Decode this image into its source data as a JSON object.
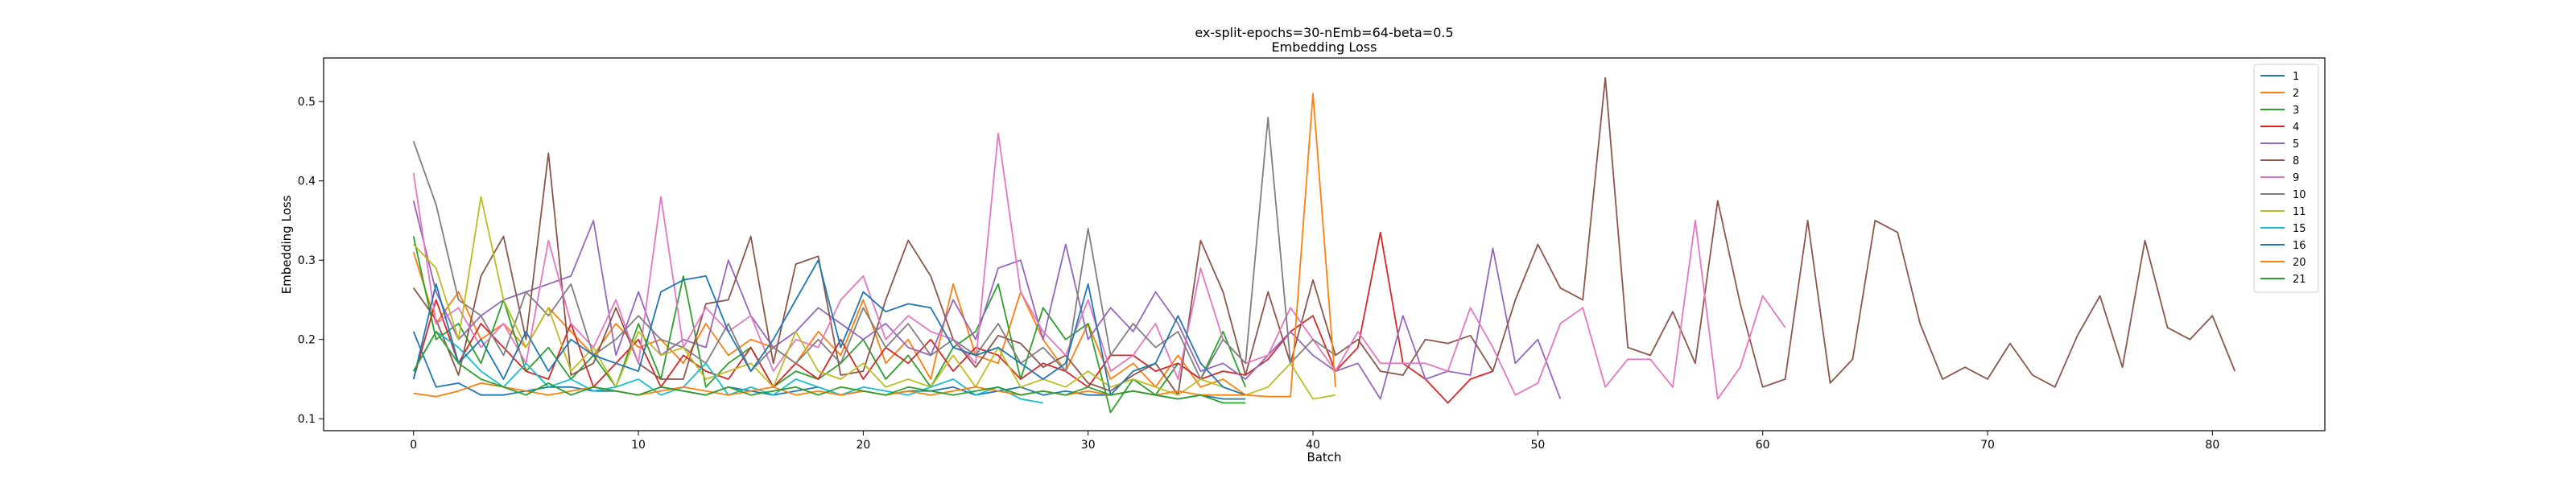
{
  "chart_data": {
    "type": "line",
    "title": "ex-split-epochs=30-nEmb=64-beta=0.5",
    "subtitle": "Embedding Loss",
    "xlabel": "Batch",
    "ylabel": "Embedding Loss",
    "xlim": [
      -4,
      85
    ],
    "ylim": [
      0.085,
      0.555
    ],
    "xticks": [
      0,
      10,
      20,
      30,
      40,
      50,
      60,
      70,
      80
    ],
    "yticks": [
      0.1,
      0.2,
      0.3,
      0.4,
      0.5
    ],
    "grid": false,
    "legend_position": "top-right",
    "series": [
      {
        "name": "1",
        "color": "#1f77b4",
        "values": [
          0.21,
          0.14,
          0.145,
          0.13,
          0.13,
          0.135,
          0.14,
          0.14,
          0.135,
          0.135,
          0.13,
          0.14,
          0.135,
          0.13,
          0.14,
          0.135,
          0.13,
          0.135,
          0.14,
          0.13,
          0.135,
          0.13,
          0.135,
          0.135,
          0.14,
          0.13,
          0.135,
          0.14,
          0.13,
          0.135,
          0.13,
          0.13,
          0.135,
          0.13,
          0.125,
          0.13,
          0.125,
          0.125
        ]
      },
      {
        "name": "2",
        "color": "#ff7f0e",
        "values": [
          0.31,
          0.22,
          0.26,
          0.2,
          0.22,
          0.19,
          0.24,
          0.21,
          0.18,
          0.22,
          0.19,
          0.2,
          0.17,
          0.22,
          0.18,
          0.2,
          0.19,
          0.17,
          0.21,
          0.18,
          0.25,
          0.17,
          0.2,
          0.15,
          0.27,
          0.18,
          0.17,
          0.26,
          0.2,
          0.16,
          0.22,
          0.15,
          0.17,
          0.14,
          0.18,
          0.14,
          0.15,
          0.13
        ]
      },
      {
        "name": "3",
        "color": "#2ca02c",
        "values": [
          0.33,
          0.2,
          0.22,
          0.17,
          0.25,
          0.16,
          0.19,
          0.15,
          0.18,
          0.14,
          0.22,
          0.15,
          0.28,
          0.14,
          0.17,
          0.19,
          0.14,
          0.16,
          0.15,
          0.17,
          0.2,
          0.15,
          0.18,
          0.14,
          0.19,
          0.21,
          0.27,
          0.15,
          0.24,
          0.2,
          0.22,
          0.108,
          0.15,
          0.13,
          0.17,
          0.15,
          0.21,
          0.14
        ]
      },
      {
        "name": "4",
        "color": "#d62728",
        "values": [
          0.15,
          0.25,
          0.17,
          0.22,
          0.19,
          0.16,
          0.15,
          0.22,
          0.14,
          0.17,
          0.2,
          0.14,
          0.18,
          0.16,
          0.15,
          0.19,
          0.14,
          0.17,
          0.15,
          0.2,
          0.15,
          0.19,
          0.17,
          0.2,
          0.16,
          0.19,
          0.18,
          0.15,
          0.17,
          0.16,
          0.14,
          0.18,
          0.18,
          0.16,
          0.17,
          0.15,
          0.16,
          0.155,
          0.175,
          0.21,
          0.23,
          0.16,
          0.19,
          0.335,
          0.17,
          0.15,
          0.12,
          0.15,
          0.16
        ]
      },
      {
        "name": "5",
        "color": "#9467bd",
        "values": [
          0.375,
          0.26,
          0.2,
          0.23,
          0.25,
          0.26,
          0.27,
          0.28,
          0.35,
          0.18,
          0.26,
          0.18,
          0.2,
          0.19,
          0.3,
          0.23,
          0.19,
          0.21,
          0.24,
          0.22,
          0.2,
          0.22,
          0.19,
          0.18,
          0.25,
          0.2,
          0.29,
          0.3,
          0.2,
          0.32,
          0.2,
          0.24,
          0.21,
          0.26,
          0.22,
          0.16,
          0.17,
          0.15,
          0.18,
          0.21,
          0.18,
          0.16,
          0.17,
          0.125,
          0.23,
          0.15,
          0.16,
          0.155,
          0.315,
          0.17,
          0.2,
          0.125
        ]
      },
      {
        "name": "8",
        "color": "#8c564b",
        "values": [
          0.265,
          0.225,
          0.155,
          0.28,
          0.33,
          0.2,
          0.435,
          0.155,
          0.17,
          0.24,
          0.17,
          0.15,
          0.15,
          0.245,
          0.25,
          0.33,
          0.17,
          0.295,
          0.305,
          0.155,
          0.16,
          0.25,
          0.325,
          0.28,
          0.2,
          0.165,
          0.205,
          0.195,
          0.165,
          0.18,
          0.145,
          0.135,
          0.155,
          0.17,
          0.13,
          0.325,
          0.26,
          0.155,
          0.26,
          0.17,
          0.275,
          0.18,
          0.2,
          0.16,
          0.155,
          0.2,
          0.195,
          0.205,
          0.16,
          0.25,
          0.32,
          0.265,
          0.25,
          0.53,
          0.19,
          0.18,
          0.235,
          0.17,
          0.375,
          0.245,
          0.14,
          0.15,
          0.35,
          0.145,
          0.175,
          0.35,
          0.335,
          0.22,
          0.15,
          0.165,
          0.15,
          0.195,
          0.155,
          0.14,
          0.205,
          0.255,
          0.165,
          0.325,
          0.215,
          0.2,
          0.23,
          0.16
        ]
      },
      {
        "name": "9",
        "color": "#e377c2",
        "values": [
          0.41,
          0.22,
          0.24,
          0.19,
          0.22,
          0.17,
          0.325,
          0.22,
          0.19,
          0.25,
          0.17,
          0.38,
          0.19,
          0.24,
          0.21,
          0.23,
          0.16,
          0.2,
          0.19,
          0.25,
          0.28,
          0.2,
          0.23,
          0.21,
          0.2,
          0.17,
          0.46,
          0.26,
          0.21,
          0.18,
          0.25,
          0.16,
          0.18,
          0.22,
          0.15,
          0.29,
          0.2,
          0.17,
          0.18,
          0.24,
          0.2,
          0.16,
          0.21,
          0.17,
          0.17,
          0.17,
          0.16,
          0.24,
          0.19,
          0.13,
          0.145,
          0.22,
          0.24,
          0.14,
          0.175,
          0.175,
          0.14,
          0.35,
          0.125,
          0.165,
          0.255,
          0.215
        ]
      },
      {
        "name": "10",
        "color": "#7f7f7f",
        "values": [
          0.45,
          0.37,
          0.25,
          0.23,
          0.18,
          0.26,
          0.23,
          0.27,
          0.18,
          0.2,
          0.23,
          0.2,
          0.19,
          0.17,
          0.22,
          0.16,
          0.19,
          0.17,
          0.2,
          0.17,
          0.24,
          0.19,
          0.22,
          0.18,
          0.2,
          0.18,
          0.22,
          0.17,
          0.19,
          0.16,
          0.34,
          0.18,
          0.22,
          0.19,
          0.21,
          0.15,
          0.2,
          0.17,
          0.48,
          0.17,
          0.2,
          0.18
        ]
      },
      {
        "name": "11",
        "color": "#bcbd22",
        "values": [
          0.32,
          0.29,
          0.2,
          0.38,
          0.25,
          0.19,
          0.24,
          0.16,
          0.19,
          0.14,
          0.21,
          0.18,
          0.19,
          0.15,
          0.16,
          0.17,
          0.14,
          0.21,
          0.16,
          0.15,
          0.17,
          0.14,
          0.15,
          0.14,
          0.18,
          0.14,
          0.19,
          0.14,
          0.15,
          0.14,
          0.16,
          0.14,
          0.15,
          0.14,
          0.13,
          0.15,
          0.14,
          0.13,
          0.14,
          0.17,
          0.125,
          0.13
        ]
      },
      {
        "name": "15",
        "color": "#17becf",
        "values": [
          0.16,
          0.21,
          0.19,
          0.16,
          0.14,
          0.17,
          0.14,
          0.15,
          0.135,
          0.14,
          0.15,
          0.13,
          0.14,
          0.17,
          0.13,
          0.14,
          0.13,
          0.15,
          0.14,
          0.13,
          0.14,
          0.135,
          0.13,
          0.14,
          0.15,
          0.13,
          0.14,
          0.125,
          0.12
        ]
      },
      {
        "name": "16",
        "color": "#1f77b4",
        "values": [
          0.15,
          0.27,
          0.17,
          0.2,
          0.15,
          0.21,
          0.16,
          0.2,
          0.18,
          0.17,
          0.16,
          0.26,
          0.275,
          0.28,
          0.21,
          0.16,
          0.2,
          0.25,
          0.3,
          0.19,
          0.26,
          0.235,
          0.245,
          0.24,
          0.19,
          0.18,
          0.19,
          0.17,
          0.15,
          0.17,
          0.27,
          0.13,
          0.16,
          0.17,
          0.23,
          0.17,
          0.14,
          0.13
        ]
      },
      {
        "name": "20",
        "color": "#ff7f0e",
        "values": [
          0.132,
          0.128,
          0.135,
          0.145,
          0.14,
          0.135,
          0.13,
          0.135,
          0.14,
          0.135,
          0.13,
          0.135,
          0.14,
          0.135,
          0.13,
          0.135,
          0.14,
          0.13,
          0.135,
          0.13,
          0.135,
          0.13,
          0.135,
          0.13,
          0.135,
          0.14,
          0.135,
          0.13,
          0.135,
          0.13,
          0.135,
          0.13,
          0.135,
          0.13,
          0.135,
          0.13,
          0.13,
          0.13,
          0.128,
          0.128,
          0.51,
          0.14
        ]
      },
      {
        "name": "21",
        "color": "#2ca02c",
        "values": [
          0.16,
          0.21,
          0.17,
          0.15,
          0.14,
          0.13,
          0.145,
          0.13,
          0.14,
          0.135,
          0.13,
          0.14,
          0.135,
          0.13,
          0.14,
          0.13,
          0.135,
          0.14,
          0.13,
          0.14,
          0.135,
          0.13,
          0.14,
          0.135,
          0.13,
          0.135,
          0.14,
          0.13,
          0.135,
          0.13,
          0.14,
          0.13,
          0.135,
          0.13,
          0.125,
          0.13,
          0.12,
          0.12
        ]
      }
    ]
  }
}
